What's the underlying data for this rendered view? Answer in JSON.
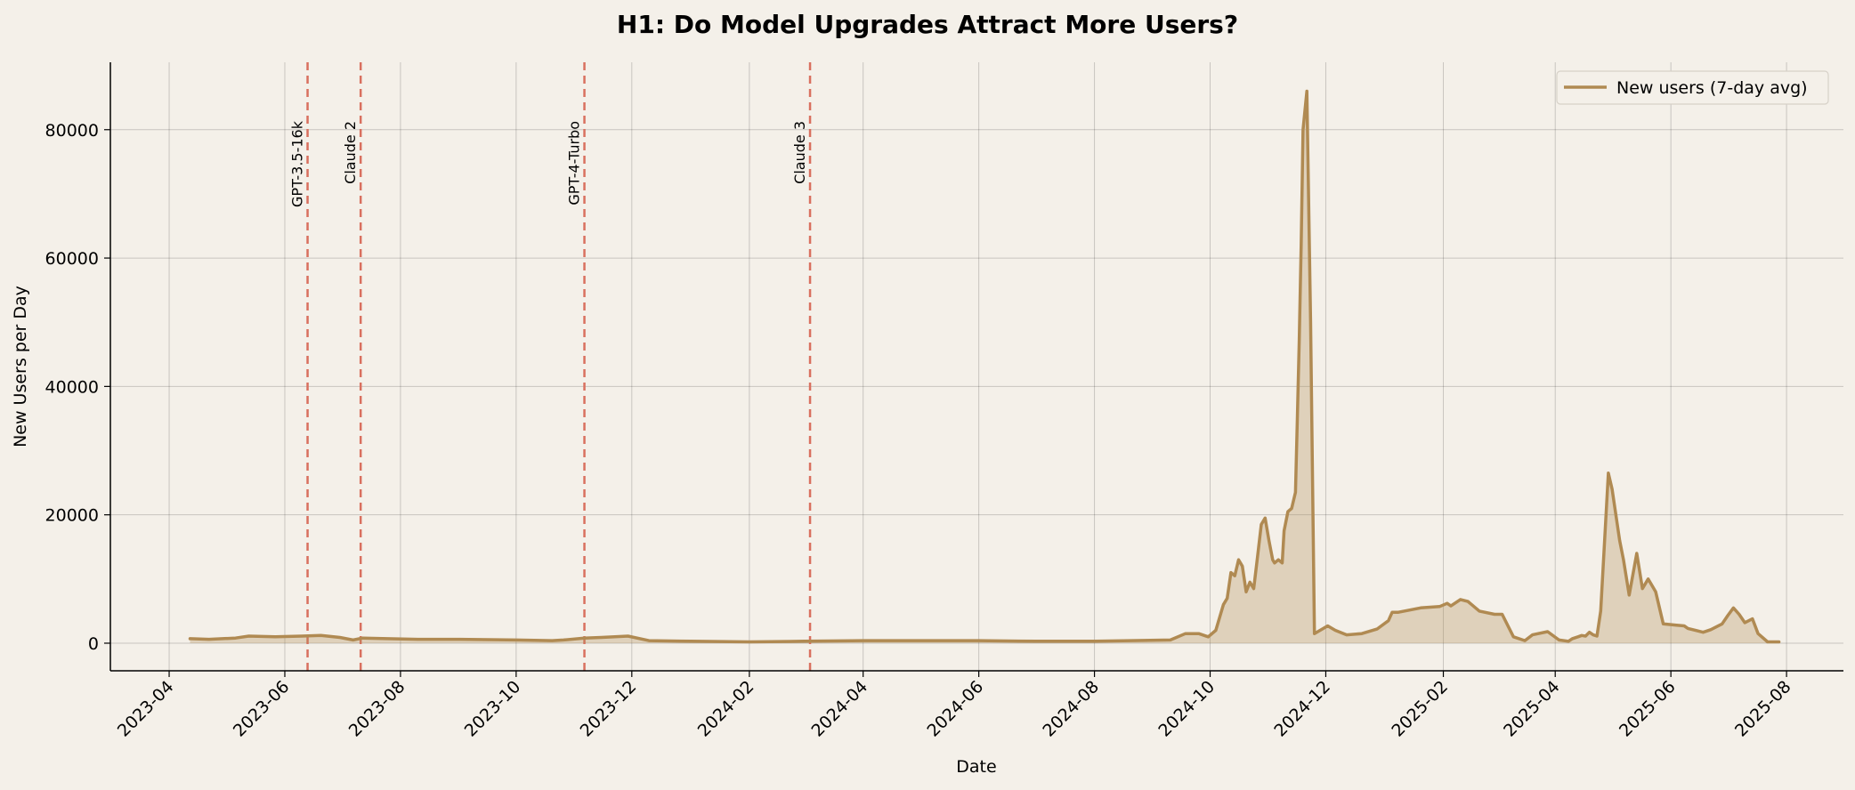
{
  "chart_data": {
    "type": "area",
    "title": "H1: Do Model Upgrades Attract More Users?",
    "xlabel": "Date",
    "ylabel": "New Users per Day",
    "x_range": [
      "2023-03-01",
      "2025-08-31"
    ],
    "ylim": [
      -4300,
      90500
    ],
    "grid": true,
    "legend_position": "top-right",
    "x_ticks": [
      "2023-04",
      "2023-06",
      "2023-08",
      "2023-10",
      "2023-12",
      "2024-02",
      "2024-04",
      "2024-06",
      "2024-08",
      "2024-10",
      "2024-12",
      "2025-02",
      "2025-04",
      "2025-06",
      "2025-08"
    ],
    "y_ticks": [
      0,
      20000,
      40000,
      60000,
      80000
    ],
    "events": [
      {
        "date": "2023-06-13",
        "label": "GPT-3.5-16k"
      },
      {
        "date": "2023-07-11",
        "label": "Claude 2"
      },
      {
        "date": "2023-11-06",
        "label": "GPT-4-Turbo"
      },
      {
        "date": "2024-03-04",
        "label": "Claude 3"
      }
    ],
    "series": [
      {
        "name": "New users (7-day avg)",
        "color": "#b08a52",
        "event_color": "#d9705f",
        "x": [
          "2023-04-12",
          "2023-04-22",
          "2023-05-06",
          "2023-05-13",
          "2023-05-27",
          "2023-06-10",
          "2023-06-20",
          "2023-06-30",
          "2023-07-07",
          "2023-07-12",
          "2023-07-25",
          "2023-08-10",
          "2023-09-01",
          "2023-10-01",
          "2023-10-20",
          "2023-10-26",
          "2023-11-06",
          "2023-11-15",
          "2023-11-29",
          "2023-12-10",
          "2024-01-01",
          "2024-02-01",
          "2024-03-01",
          "2024-04-01",
          "2024-05-01",
          "2024-06-01",
          "2024-07-01",
          "2024-08-01",
          "2024-08-20",
          "2024-09-10",
          "2024-09-18",
          "2024-09-25",
          "2024-09-30",
          "2024-10-04",
          "2024-10-08",
          "2024-10-10",
          "2024-10-12",
          "2024-10-14",
          "2024-10-16",
          "2024-10-18",
          "2024-10-20",
          "2024-10-22",
          "2024-10-24",
          "2024-10-26",
          "2024-10-28",
          "2024-10-30",
          "2024-11-01",
          "2024-11-02",
          "2024-11-03",
          "2024-11-04",
          "2024-11-06",
          "2024-11-08",
          "2024-11-09",
          "2024-11-11",
          "2024-11-13",
          "2024-11-15",
          "2024-11-16",
          "2024-11-17",
          "2024-11-18",
          "2024-11-19",
          "2024-11-21",
          "2024-11-23",
          "2024-11-25",
          "2024-12-02",
          "2024-12-06",
          "2024-12-12",
          "2024-12-20",
          "2024-12-28",
          "2025-01-03",
          "2025-01-05",
          "2025-01-08",
          "2025-01-20",
          "2025-01-30",
          "2025-02-03",
          "2025-02-05",
          "2025-02-10",
          "2025-02-14",
          "2025-02-20",
          "2025-02-28",
          "2025-03-04",
          "2025-03-10",
          "2025-03-16",
          "2025-03-20",
          "2025-03-28",
          "2025-04-03",
          "2025-04-08",
          "2025-04-10",
          "2025-04-13",
          "2025-04-15",
          "2025-04-17",
          "2025-04-19",
          "2025-04-21",
          "2025-04-23",
          "2025-04-25",
          "2025-04-29",
          "2025-05-01",
          "2025-05-05",
          "2025-05-07",
          "2025-05-10",
          "2025-05-14",
          "2025-05-17",
          "2025-05-20",
          "2025-05-24",
          "2025-05-28",
          "2025-06-04",
          "2025-06-08",
          "2025-06-10",
          "2025-06-18",
          "2025-06-22",
          "2025-06-28",
          "2025-07-01",
          "2025-07-04",
          "2025-07-07",
          "2025-07-10",
          "2025-07-14",
          "2025-07-17",
          "2025-07-22",
          "2025-07-28"
        ],
        "y": [
          700,
          600,
          800,
          1100,
          1000,
          1100,
          1200,
          900,
          500,
          800,
          700,
          600,
          600,
          500,
          400,
          500,
          800,
          900,
          1100,
          400,
          300,
          200,
          300,
          400,
          400,
          400,
          300,
          300,
          400,
          500,
          1500,
          1500,
          1000,
          2000,
          6000,
          7000,
          11000,
          10500,
          13000,
          12000,
          8000,
          9500,
          8500,
          13500,
          18500,
          19500,
          16000,
          14500,
          13000,
          12500,
          13000,
          12500,
          17500,
          20500,
          21000,
          23500,
          35000,
          47000,
          62000,
          80000,
          86000,
          50000,
          1500,
          2700,
          2000,
          1300,
          1500,
          2200,
          3500,
          4800,
          4800,
          5500,
          5700,
          6200,
          5800,
          6800,
          6500,
          5000,
          4500,
          4500,
          1000,
          400,
          1300,
          1800,
          500,
          300,
          700,
          1000,
          1200,
          1100,
          1700,
          1300,
          1100,
          5000,
          26500,
          24000,
          16000,
          13000,
          7500,
          14000,
          8500,
          10000,
          8000,
          3000,
          2800,
          2700,
          2300,
          1700,
          2100,
          3000,
          4300,
          5500,
          4500,
          3200,
          3800,
          1500,
          200,
          200
        ]
      }
    ]
  }
}
